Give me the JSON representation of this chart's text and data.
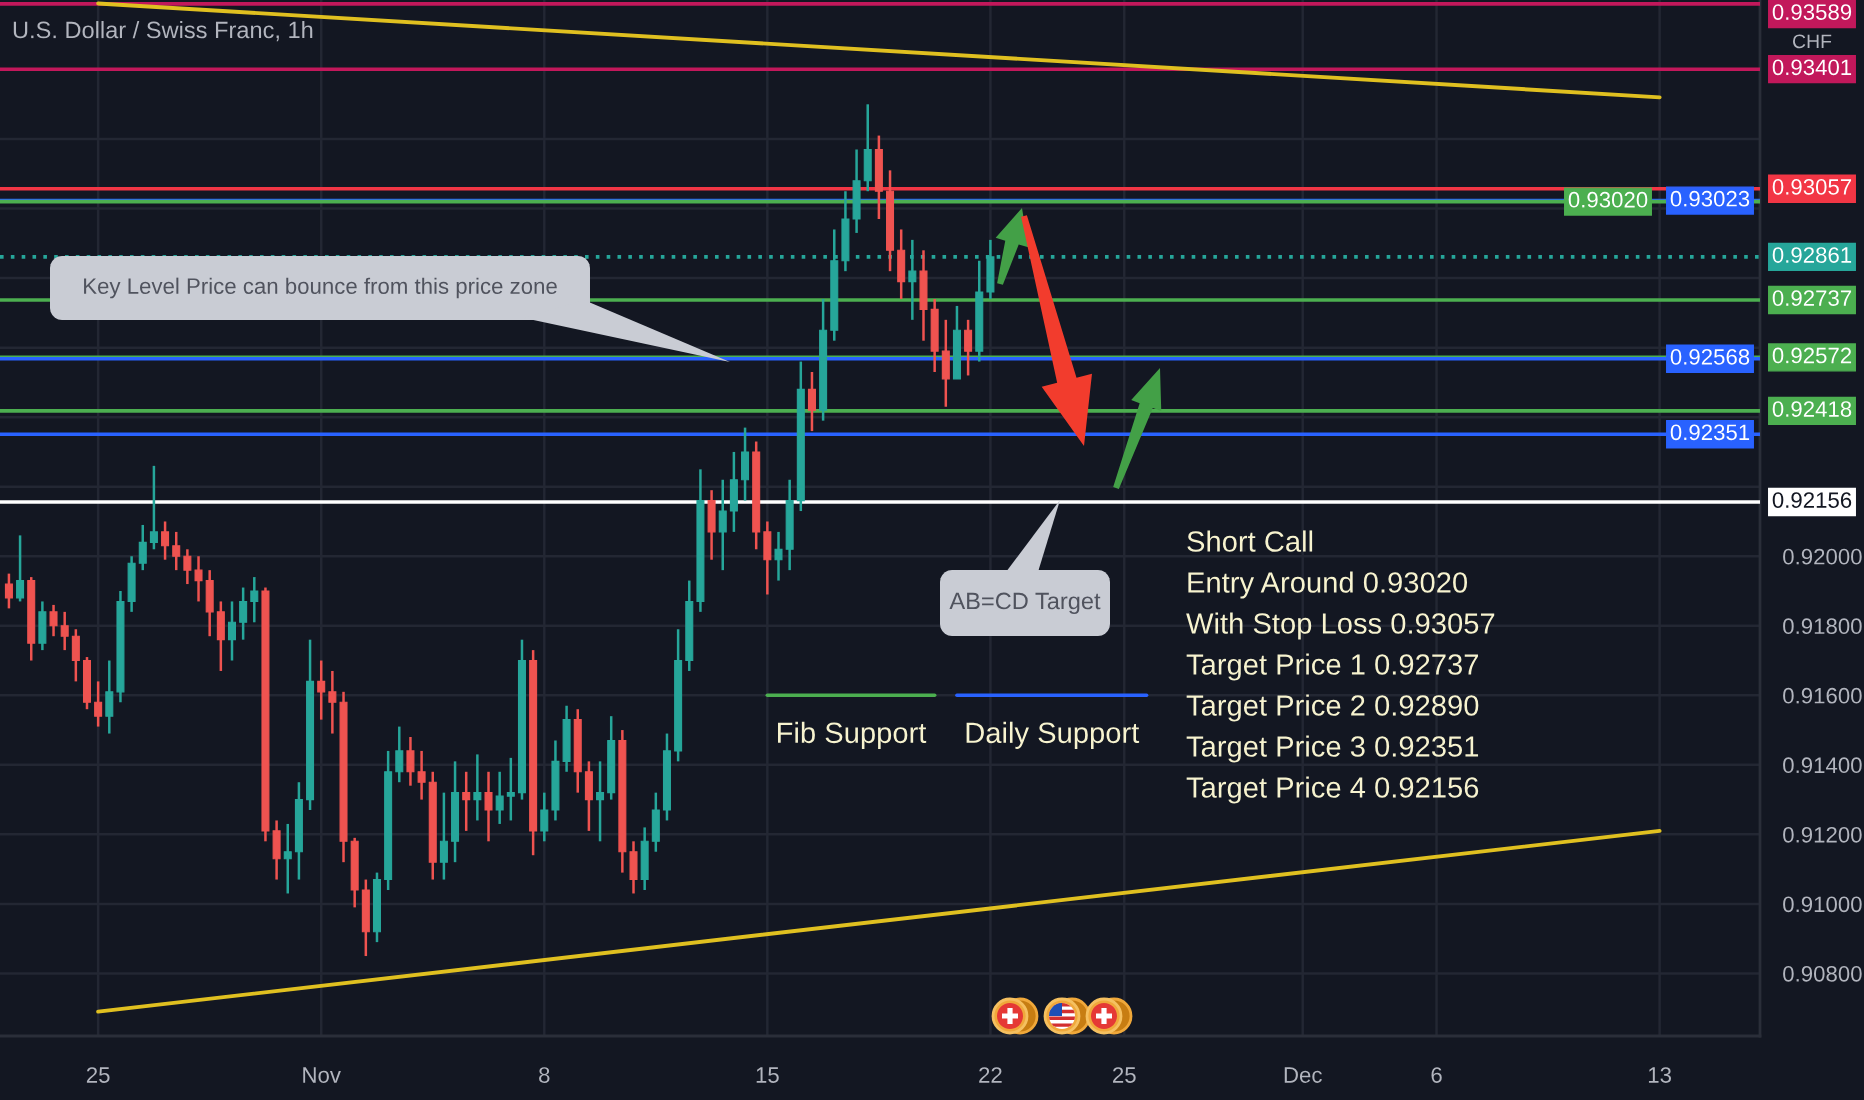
{
  "chart_data": {
    "type": "candlestick",
    "title": "U.S. Dollar / Swiss Franc, 1h",
    "ylabel": "CHF",
    "categories": [
      null,
      null,
      null,
      null,
      null,
      null,
      null,
      null,
      "25",
      null,
      null,
      null,
      null,
      null,
      null,
      null,
      null,
      null,
      null,
      null,
      null,
      null,
      null,
      null,
      null,
      null,
      null,
      null,
      "Nov",
      null,
      null,
      null,
      null,
      null,
      null,
      null,
      null,
      null,
      null,
      null,
      null,
      null,
      null,
      null,
      null,
      null,
      null,
      null,
      "8",
      null,
      null,
      null,
      null,
      null,
      null,
      null,
      null,
      null,
      null,
      null,
      null,
      null,
      null,
      null,
      null,
      null,
      null,
      null,
      "15",
      null,
      null,
      null,
      null,
      null,
      null,
      null,
      null,
      null,
      null,
      null,
      null,
      null,
      null,
      null,
      null,
      null,
      null,
      null,
      "22",
      null,
      null,
      null,
      null,
      null,
      null,
      null,
      null,
      null,
      null,
      null,
      "25",
      null,
      null,
      null,
      null,
      null,
      null,
      null,
      null,
      null,
      null,
      null,
      null,
      null,
      null,
      null,
      "Dec",
      null,
      null,
      null,
      null,
      null,
      null,
      null,
      null,
      null,
      null,
      null,
      "6",
      null,
      null,
      null,
      null,
      null,
      null,
      null,
      null,
      null,
      null,
      null,
      null,
      null,
      null,
      null,
      null,
      null,
      null,
      null,
      "13",
      null,
      null,
      null,
      null,
      null,
      null,
      null,
      null
    ],
    "ohlc": [
      [
        0.9192,
        0.9195,
        0.9185,
        0.9188
      ],
      [
        0.9188,
        0.9206,
        0.9187,
        0.9193
      ],
      [
        0.9193,
        0.9194,
        0.917,
        0.9175
      ],
      [
        0.9175,
        0.9187,
        0.9173,
        0.9184
      ],
      [
        0.9184,
        0.9186,
        0.9177,
        0.918
      ],
      [
        0.918,
        0.9184,
        0.9173,
        0.9177
      ],
      [
        0.9177,
        0.9179,
        0.9164,
        0.917
      ],
      [
        0.917,
        0.9171,
        0.9156,
        0.9158
      ],
      [
        0.9158,
        0.9164,
        0.9151,
        0.9154
      ],
      [
        0.9154,
        0.917,
        0.9149,
        0.9161
      ],
      [
        0.9161,
        0.919,
        0.9158,
        0.9187
      ],
      [
        0.9187,
        0.92,
        0.9184,
        0.9198
      ],
      [
        0.9198,
        0.9209,
        0.9196,
        0.9204
      ],
      [
        0.9204,
        0.9226,
        0.9202,
        0.9207
      ],
      [
        0.9207,
        0.921,
        0.9199,
        0.9203
      ],
      [
        0.9203,
        0.9207,
        0.9196,
        0.92
      ],
      [
        0.92,
        0.9202,
        0.9192,
        0.9196
      ],
      [
        0.9196,
        0.92,
        0.9187,
        0.9193
      ],
      [
        0.9193,
        0.9196,
        0.9177,
        0.9184
      ],
      [
        0.9184,
        0.9187,
        0.9167,
        0.9176
      ],
      [
        0.9176,
        0.9187,
        0.917,
        0.9181
      ],
      [
        0.9181,
        0.9191,
        0.9176,
        0.9187
      ],
      [
        0.9187,
        0.9194,
        0.9181,
        0.919
      ],
      [
        0.919,
        0.9191,
        0.9118,
        0.9121
      ],
      [
        0.9121,
        0.9124,
        0.9107,
        0.9113
      ],
      [
        0.9113,
        0.9123,
        0.9103,
        0.9115
      ],
      [
        0.9115,
        0.9135,
        0.9107,
        0.913
      ],
      [
        0.913,
        0.9176,
        0.9127,
        0.9164
      ],
      [
        0.9164,
        0.917,
        0.9153,
        0.9161
      ],
      [
        0.9161,
        0.9167,
        0.9149,
        0.9158
      ],
      [
        0.9158,
        0.9161,
        0.9112,
        0.9118
      ],
      [
        0.9118,
        0.9119,
        0.9099,
        0.9104
      ],
      [
        0.9104,
        0.9107,
        0.9085,
        0.9092
      ],
      [
        0.9092,
        0.9109,
        0.9089,
        0.9107
      ],
      [
        0.9107,
        0.9144,
        0.9104,
        0.9138
      ],
      [
        0.9138,
        0.9151,
        0.9135,
        0.9144
      ],
      [
        0.9144,
        0.9148,
        0.9134,
        0.9138
      ],
      [
        0.9138,
        0.9144,
        0.913,
        0.9135
      ],
      [
        0.9135,
        0.9138,
        0.9107,
        0.9112
      ],
      [
        0.9112,
        0.9132,
        0.9107,
        0.9118
      ],
      [
        0.9118,
        0.9141,
        0.9112,
        0.9132
      ],
      [
        0.9132,
        0.9138,
        0.9121,
        0.913
      ],
      [
        0.913,
        0.9143,
        0.9124,
        0.9132
      ],
      [
        0.9132,
        0.9138,
        0.9118,
        0.9127
      ],
      [
        0.9127,
        0.9138,
        0.9123,
        0.9131
      ],
      [
        0.9131,
        0.9142,
        0.9124,
        0.9132
      ],
      [
        0.9132,
        0.9176,
        0.913,
        0.917
      ],
      [
        0.917,
        0.9173,
        0.9114,
        0.9121
      ],
      [
        0.9121,
        0.9132,
        0.9118,
        0.9127
      ],
      [
        0.9127,
        0.9147,
        0.9124,
        0.9141
      ],
      [
        0.9141,
        0.9157,
        0.9138,
        0.9153
      ],
      [
        0.9153,
        0.9156,
        0.9132,
        0.9138
      ],
      [
        0.9138,
        0.9141,
        0.9121,
        0.913
      ],
      [
        0.913,
        0.9141,
        0.9118,
        0.9132
      ],
      [
        0.9132,
        0.9154,
        0.913,
        0.9147
      ],
      [
        0.9147,
        0.915,
        0.9109,
        0.9115
      ],
      [
        0.9115,
        0.9118,
        0.9103,
        0.9107
      ],
      [
        0.9107,
        0.9122,
        0.9104,
        0.9118
      ],
      [
        0.9118,
        0.9132,
        0.9115,
        0.9127
      ],
      [
        0.9127,
        0.9149,
        0.9124,
        0.9144
      ],
      [
        0.9144,
        0.9179,
        0.9141,
        0.917
      ],
      [
        0.917,
        0.9193,
        0.9167,
        0.9187
      ],
      [
        0.9187,
        0.9225,
        0.9184,
        0.9216
      ],
      [
        0.9216,
        0.9219,
        0.9199,
        0.9207
      ],
      [
        0.9207,
        0.9222,
        0.9196,
        0.9213
      ],
      [
        0.9213,
        0.923,
        0.9207,
        0.9222
      ],
      [
        0.9222,
        0.9237,
        0.9216,
        0.923
      ],
      [
        0.923,
        0.9233,
        0.9202,
        0.9207
      ],
      [
        0.9207,
        0.921,
        0.9189,
        0.9199
      ],
      [
        0.9199,
        0.9207,
        0.9193,
        0.9202
      ],
      [
        0.9202,
        0.9222,
        0.9196,
        0.9216
      ],
      [
        0.9216,
        0.9256,
        0.9213,
        0.9248
      ],
      [
        0.9248,
        0.9253,
        0.9236,
        0.9242
      ],
      [
        0.9242,
        0.9274,
        0.9239,
        0.9265
      ],
      [
        0.9265,
        0.9294,
        0.9262,
        0.9285
      ],
      [
        0.9285,
        0.9305,
        0.9282,
        0.9297
      ],
      [
        0.9297,
        0.9317,
        0.9293,
        0.9308
      ],
      [
        0.9308,
        0.933,
        0.9305,
        0.9317
      ],
      [
        0.9317,
        0.9321,
        0.9297,
        0.9305
      ],
      [
        0.9305,
        0.9311,
        0.9282,
        0.9288
      ],
      [
        0.9288,
        0.9294,
        0.9274,
        0.9279
      ],
      [
        0.9279,
        0.9291,
        0.9268,
        0.9282
      ],
      [
        0.9282,
        0.9288,
        0.9262,
        0.9271
      ],
      [
        0.9271,
        0.9274,
        0.9253,
        0.9259
      ],
      [
        0.9259,
        0.9268,
        0.9243,
        0.9251
      ],
      [
        0.9251,
        0.9272,
        0.9251,
        0.9265
      ],
      [
        0.9265,
        0.9268,
        0.9252,
        0.9259
      ],
      [
        0.9259,
        0.9285,
        0.9256,
        0.9276
      ],
      [
        0.9276,
        0.9291,
        0.9274,
        0.92861
      ],
      null,
      null,
      null,
      null,
      null,
      null,
      null,
      null,
      null,
      null,
      null,
      null,
      null,
      null,
      null,
      null,
      null,
      null,
      null,
      null,
      null,
      null,
      null,
      null,
      null,
      null,
      null,
      null,
      null,
      null,
      null,
      null,
      null,
      null,
      null,
      null,
      null,
      null,
      null,
      null,
      null,
      null,
      null,
      null,
      null,
      null,
      null,
      null,
      null,
      null,
      null,
      null,
      null,
      null,
      null,
      null,
      null,
      null,
      null,
      null,
      null,
      null,
      null,
      null,
      null,
      null,
      null,
      null
    ],
    "ylim": [
      0.9062,
      0.936
    ],
    "yticks": [
      {
        "value": 0.908,
        "label": "0.90800"
      },
      {
        "value": 0.91,
        "label": "0.91000"
      },
      {
        "value": 0.912,
        "label": "0.91200"
      },
      {
        "value": 0.914,
        "label": "0.91400"
      },
      {
        "value": 0.916,
        "label": "0.91600"
      },
      {
        "value": 0.918,
        "label": "0.91800"
      },
      {
        "value": 0.92,
        "label": "0.92000"
      },
      {
        "value": 0.922,
        "label": null
      },
      {
        "value": 0.924,
        "label": null
      },
      {
        "value": 0.926,
        "label": null
      },
      {
        "value": 0.928,
        "label": null
      },
      {
        "value": 0.93,
        "label": null
      },
      {
        "value": 0.932,
        "label": null
      },
      {
        "value": 0.934,
        "label": null
      }
    ],
    "grid": true,
    "series": [
      {
        "type": "line",
        "color": "#e0c020",
        "x": [
          "25",
          "13"
        ],
        "values": [
          0.9069,
          0.9121
        ]
      },
      {
        "type": "line",
        "color": "#e0c020",
        "x": [
          "25",
          "13"
        ],
        "values": [
          0.9359,
          0.9332
        ]
      },
      {
        "type": "line",
        "name": "Fib Support",
        "color": "#4caf50",
        "values": [
          null,
          null,
          null,
          null,
          null,
          null,
          null,
          null,
          null,
          null,
          null,
          null,
          null,
          null,
          null,
          null,
          null,
          null,
          null,
          null,
          null,
          null,
          null,
          null,
          null,
          null,
          null,
          null,
          null,
          null,
          null,
          null,
          null,
          null,
          null,
          null,
          null,
          null,
          null,
          null,
          null,
          null,
          null,
          null,
          null,
          null,
          null,
          null,
          null,
          null,
          null,
          null,
          null,
          null,
          null,
          null,
          null,
          null,
          null,
          null,
          null,
          null,
          null,
          null,
          null,
          null,
          null,
          null,
          0.916,
          0.916,
          0.916,
          0.916,
          0.916,
          0.916,
          0.916,
          0.916,
          0.916,
          0.916,
          0.916,
          0.916,
          0.916,
          0.916,
          0.916,
          0.916,
          null,
          null,
          null,
          null,
          null,
          null,
          null,
          null,
          null,
          null,
          null,
          null,
          null,
          null,
          null,
          null,
          null,
          null,
          null,
          null,
          null,
          null,
          null,
          null,
          null,
          null,
          null,
          null,
          null,
          null,
          null,
          null,
          null,
          null,
          null,
          null,
          null,
          null,
          null,
          null,
          null,
          null,
          null,
          null,
          null,
          null,
          null,
          null,
          null,
          null,
          null,
          null,
          null,
          null,
          null,
          null,
          null,
          null,
          null,
          null,
          null,
          null,
          null,
          null,
          null,
          null,
          null,
          null,
          null,
          null,
          null,
          null,
          null
        ]
      },
      {
        "type": "line",
        "name": "Daily Support",
        "color": "#2962ff",
        "values": [
          null,
          null,
          null,
          null,
          null,
          null,
          null,
          null,
          null,
          null,
          null,
          null,
          null,
          null,
          null,
          null,
          null,
          null,
          null,
          null,
          null,
          null,
          null,
          null,
          null,
          null,
          null,
          null,
          null,
          null,
          null,
          null,
          null,
          null,
          null,
          null,
          null,
          null,
          null,
          null,
          null,
          null,
          null,
          null,
          null,
          null,
          null,
          null,
          null,
          null,
          null,
          null,
          null,
          null,
          null,
          null,
          null,
          null,
          null,
          null,
          null,
          null,
          null,
          null,
          null,
          null,
          null,
          null,
          null,
          null,
          null,
          null,
          null,
          null,
          null,
          null,
          null,
          null,
          null,
          null,
          null,
          null,
          null,
          null,
          null,
          0.916,
          0.916,
          0.916,
          0.916,
          0.916,
          0.916,
          0.916,
          0.916,
          0.916,
          0.916,
          0.916,
          0.916,
          0.916,
          0.916,
          0.916,
          0.916,
          0.916,
          0.916,
          null,
          null,
          null,
          null,
          null,
          null,
          null,
          null,
          null,
          null,
          null,
          null,
          null,
          null,
          null,
          null,
          null,
          null,
          null,
          null,
          null,
          null,
          null,
          null,
          null,
          null,
          null,
          null,
          null,
          null,
          null,
          null,
          null,
          null,
          null,
          null,
          null,
          null,
          null,
          null,
          null,
          null,
          null,
          null,
          null,
          null,
          null,
          null,
          null,
          null,
          null,
          null,
          null,
          null
        ]
      }
    ],
    "ref_lines": [
      {
        "axis": "y",
        "value": 0.93589,
        "label": "0.93589",
        "color": "#c2185b"
      },
      {
        "axis": "y",
        "value": 0.93401,
        "label": "0.93401",
        "color": "#c2185b"
      },
      {
        "axis": "y",
        "value": 0.93057,
        "label": "0.93057",
        "color": "#f23645"
      },
      {
        "axis": "y",
        "value": 0.93023,
        "label": "0.93023",
        "color": "#2962ff"
      },
      {
        "axis": "y",
        "value": 0.9302,
        "label": "0.93020",
        "color": "#4caf50"
      },
      {
        "axis": "y",
        "value": 0.92861,
        "label": "0.92861",
        "color": "#26a69a",
        "line_style": "dotted"
      },
      {
        "axis": "y",
        "value": 0.92737,
        "label": "0.92737",
        "color": "#4caf50"
      },
      {
        "axis": "y",
        "value": 0.92572,
        "label": "0.92572",
        "color": "#4caf50"
      },
      {
        "axis": "y",
        "value": 0.92568,
        "label": "0.92568",
        "color": "#2962ff"
      },
      {
        "axis": "y",
        "value": 0.92418,
        "label": "0.92418",
        "color": "#4caf50"
      },
      {
        "axis": "y",
        "value": 0.92351,
        "label": "0.92351",
        "color": "#2962ff"
      },
      {
        "axis": "y",
        "value": 0.92156,
        "label": "0.92156",
        "color": "#ffffff"
      }
    ],
    "annotations": [
      "Key Level Price can bounce from this price zone",
      "AB=CD Target",
      "Short Call",
      "Entry Around 0.93020",
      "With Stop Loss 0.93057",
      "Target Price 1 0.92737",
      "Target Price 2 0.92890",
      "Target Price 3 0.92351",
      "Target Price 4 0.92156"
    ]
  }
}
